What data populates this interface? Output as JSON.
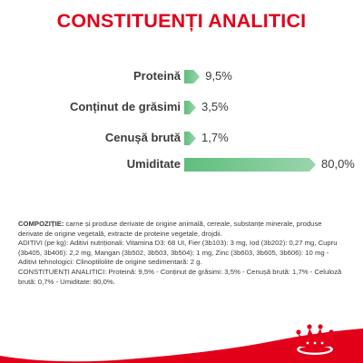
{
  "title": "CONSTITUENȚI ANALITICI",
  "nutrients": [
    {
      "label": "Proteină",
      "value": "9,5%",
      "percent": 9.5
    },
    {
      "label": "Conținut de grăsimi",
      "value": "3,5%",
      "percent": 3.5
    },
    {
      "label": "Cenușă brută",
      "value": "1,7%",
      "percent": 1.7
    },
    {
      "label": "Umiditate",
      "value": "80,0%",
      "percent": 80.0
    }
  ],
  "composition": {
    "heading": "COMPOZIȚIE:",
    "text": " carne și produse derivate de origine animală, cereale, substanțe minerale, produse derivate de origine vegetală, extracte de proteine vegetale, drojdii."
  },
  "additives": "ADITIVI (pe kg): Aditivi nutriționali: Vitamina D3: 68 UI, Fier (3b103): 3 mg, Iod (3b202): 0,27 mg, Cupru (3b405, 3b406): 2,2 mg, Mangan (3b502, 3b503, 3b504): 1 mg, Zinc (3b603, 3b605, 3b606): 10 mg - Aditivi tehnologici: Clinoptilolite de origine sedimentară: 2 g.",
  "analytical": "CONSTITUENȚI ANALITICI: Proteină: 9,5% - Conținut de grăsimi: 3,5% - Cenușă brută: 1,7% - Celuloză brută: 0,7% - Umiditate: 80,0%.",
  "colors": {
    "brand_red": "#e2001a",
    "bar_green": "#5fbe7d"
  },
  "logo_icon": "royal-canin-crown-logo"
}
